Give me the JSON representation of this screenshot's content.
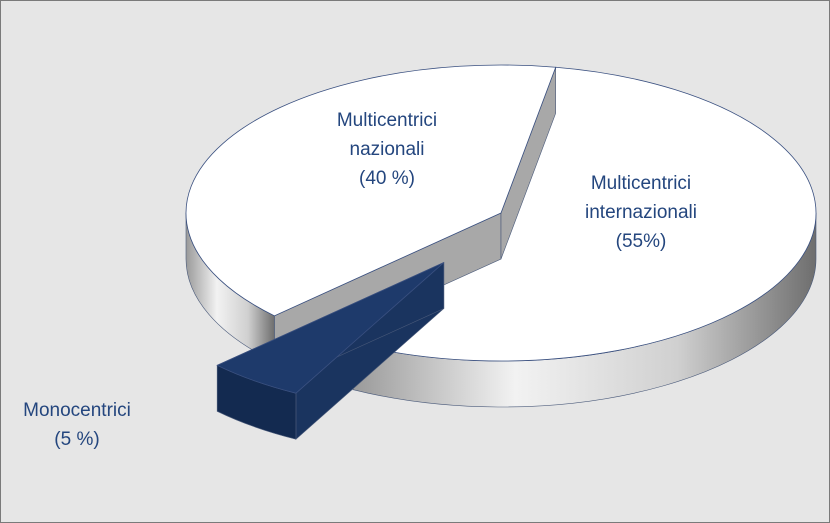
{
  "chart_data": {
    "type": "pie",
    "categories": [
      "Multicentrici internazionali",
      "Monocentrici",
      "Multicentrici nazionali"
    ],
    "values": [
      55,
      5,
      40
    ],
    "value_labels": [
      "(55%)",
      "(5 %)",
      "(40 %)"
    ],
    "colors": [
      "#ffffff",
      "#1e3a6b",
      "#ffffff"
    ]
  }
}
